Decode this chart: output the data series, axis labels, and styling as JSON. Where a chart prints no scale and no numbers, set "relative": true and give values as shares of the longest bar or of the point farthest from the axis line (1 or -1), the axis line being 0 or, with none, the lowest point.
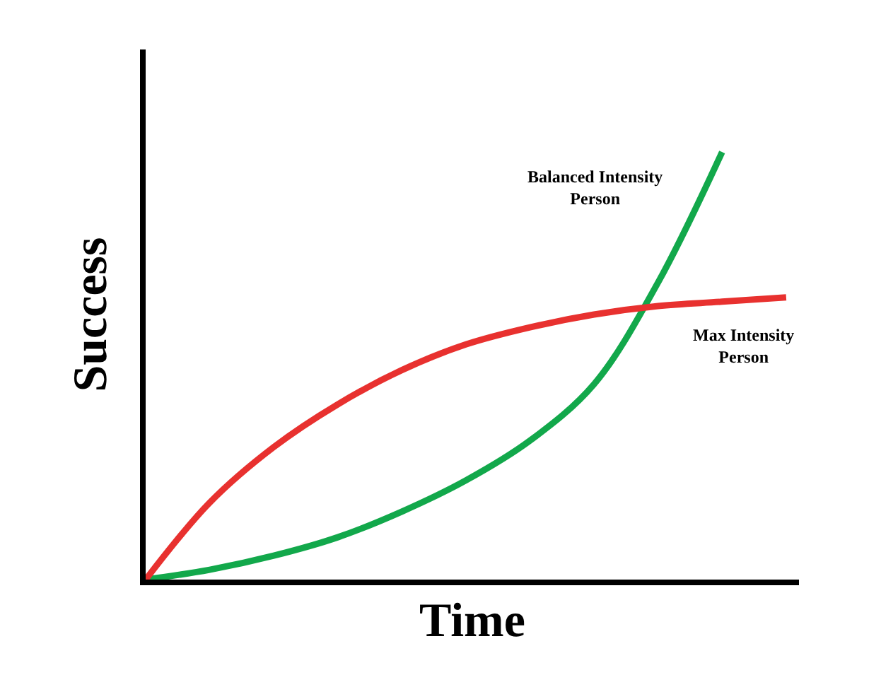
{
  "chart_data": {
    "type": "line",
    "relative": true,
    "xlabel": "Time",
    "ylabel": "Success",
    "categories": [
      null,
      null,
      null,
      null,
      null,
      null,
      null,
      null,
      null,
      null,
      null
    ],
    "series": [
      {
        "name": "Balanced Intensity Person",
        "color": "#12a84b",
        "values": [
          0,
          0.023,
          0.056,
          0.099,
          0.159,
          0.232,
          0.325,
          0.457,
          0.695,
          1,
          null
        ]
      },
      {
        "name": "Max Intensity Person",
        "color": "#e8312f",
        "values": [
          0,
          0.18,
          0.31,
          0.41,
          0.49,
          0.55,
          0.59,
          0.62,
          0.64,
          0.65,
          0.66
        ]
      }
    ],
    "marker": "none",
    "line_style": "solid"
  }
}
